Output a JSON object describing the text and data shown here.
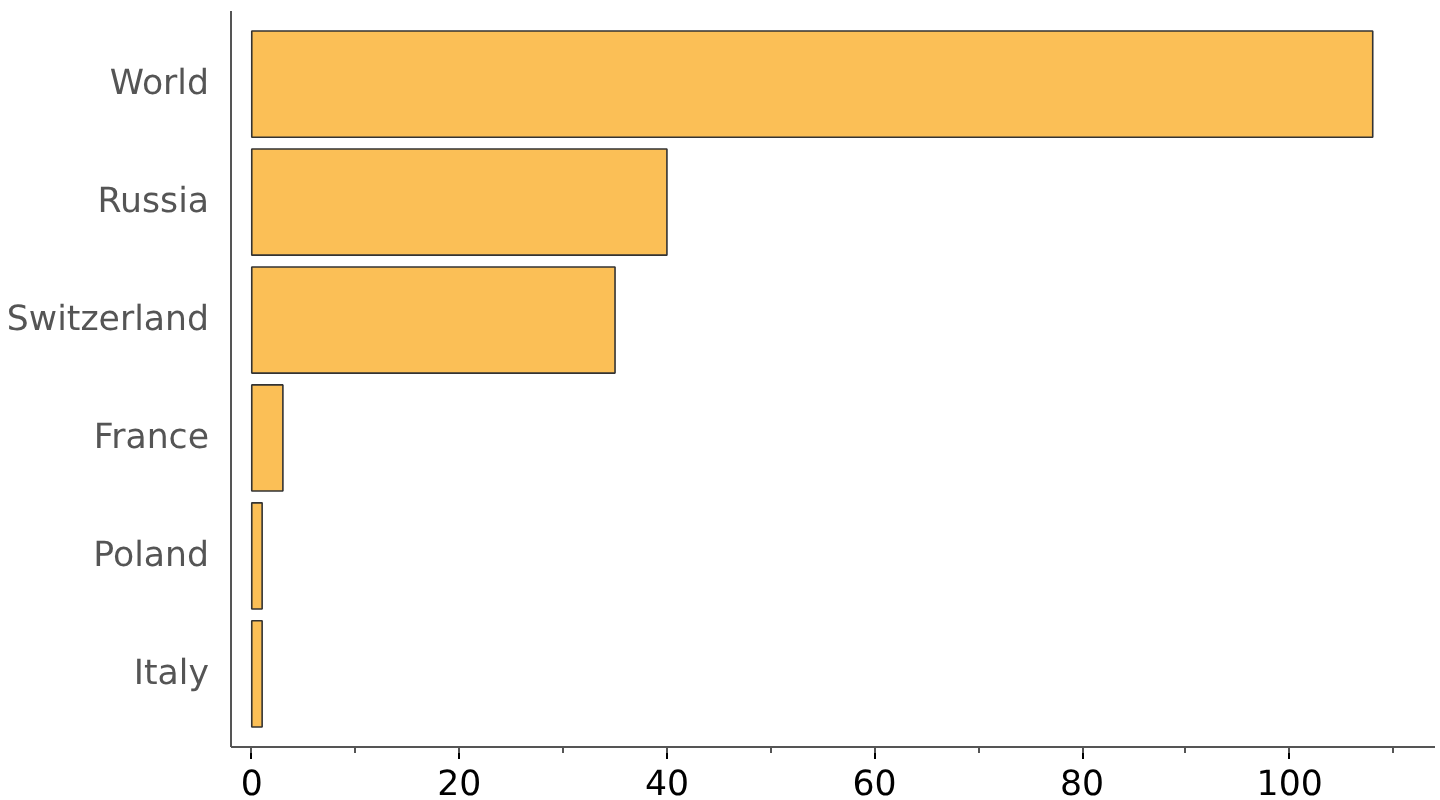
{
  "chart_data": {
    "type": "bar",
    "orientation": "horizontal",
    "categories": [
      "World",
      "Russia",
      "Switzerland",
      "France",
      "Poland",
      "Italy"
    ],
    "values": [
      108,
      40,
      35,
      3,
      1,
      1
    ],
    "color": "#fbbf56",
    "xlim": [
      -2,
      114
    ],
    "xticks": [
      0,
      20,
      40,
      60,
      80,
      100
    ],
    "grid": false
  }
}
